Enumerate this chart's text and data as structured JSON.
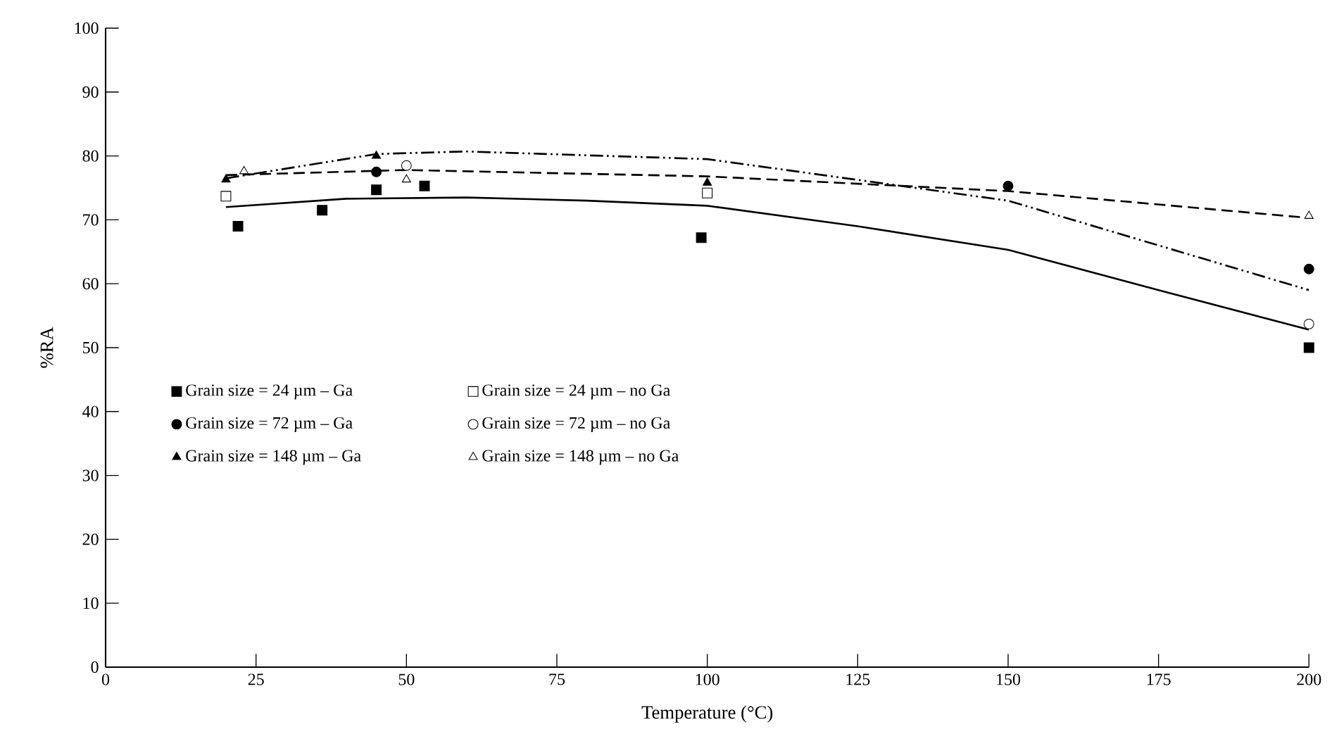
{
  "chart_data": {
    "type": "scatter",
    "xlabel": "Temperature (°C)",
    "ylabel": "%RA",
    "xlim": [
      0,
      200
    ],
    "xticks": [
      0,
      25,
      50,
      75,
      100,
      125,
      150,
      175,
      200
    ],
    "ylim": [
      0,
      100
    ],
    "yticks": [
      0,
      10,
      20,
      30,
      40,
      50,
      60,
      70,
      80,
      90,
      100
    ],
    "grid": false,
    "legend": "left",
    "series": [
      {
        "name": "Grain size = 24 µm – Ga",
        "color": "#000000",
        "marker": "square",
        "x": [
          22,
          36,
          45,
          53,
          99,
          200
        ],
        "values": [
          69,
          71.5,
          74.7,
          75.3,
          67.2,
          50
        ]
      },
      {
        "name": "Grain size = 24 µm – no Ga",
        "color": "#ffffff",
        "marker": "square",
        "x": [
          20,
          100
        ],
        "values": [
          73.7,
          74.2
        ]
      },
      {
        "name": "Grain size = 72 µm – Ga",
        "color": "#000000",
        "marker": "circle",
        "x": [
          45,
          150,
          200
        ],
        "values": [
          77.5,
          75.3,
          62.3
        ]
      },
      {
        "name": "Grain size = 72 µm – no Ga",
        "color": "#ffffff",
        "marker": "circle",
        "x": [
          50,
          200
        ],
        "values": [
          78.5,
          53.7
        ]
      },
      {
        "name": "Grain size = 148 µm – Ga",
        "color": "#000000",
        "marker": "triangle",
        "x": [
          20,
          45,
          100
        ],
        "values": [
          76.3,
          80,
          75.8
        ]
      },
      {
        "name": "Grain size = 148 µm – no Ga",
        "color": "#ffffff",
        "marker": "triangle",
        "x": [
          23,
          50,
          200
        ],
        "values": [
          77.6,
          76.3,
          70.6
        ]
      },
      {
        "type": "line",
        "color": "#000000",
        "line_style": "solid",
        "marker": "none",
        "x": [
          20,
          40,
          60,
          80,
          100,
          125,
          150,
          175,
          200
        ],
        "values": [
          72,
          73.3,
          73.5,
          73,
          72.2,
          69,
          65.3,
          59,
          52.8
        ]
      },
      {
        "type": "line",
        "color": "#000000",
        "line_style": "dashed",
        "marker": "none",
        "x": [
          20,
          50,
          100,
          150,
          200
        ],
        "values": [
          77,
          77.8,
          76.8,
          74.5,
          70.3
        ]
      },
      {
        "type": "line",
        "color": "#000000",
        "line_style": "dashdot",
        "marker": "none",
        "x": [
          20,
          45,
          60,
          100,
          150,
          200
        ],
        "values": [
          76.5,
          80.3,
          80.7,
          79.5,
          73,
          59
        ]
      }
    ]
  }
}
